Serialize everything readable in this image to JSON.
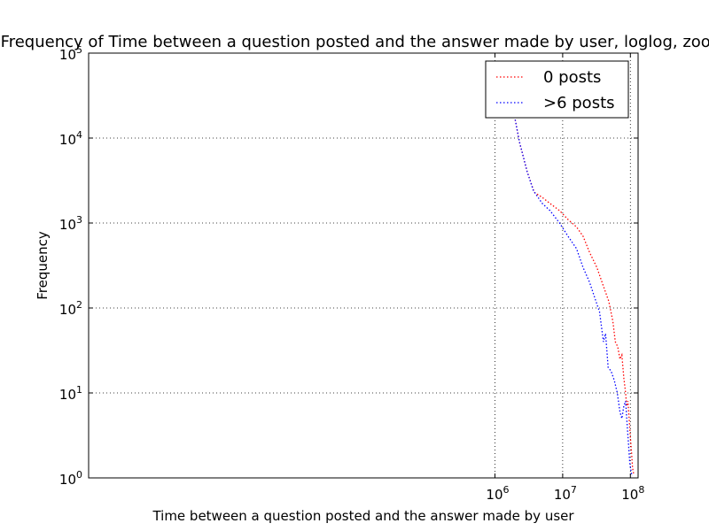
{
  "chart_data": {
    "type": "line",
    "title": "Frequency of Time between a question posted and the answer made by user, loglog, zoom",
    "xlabel": "Time between a question posted and the answer made by user",
    "ylabel": "Frequency",
    "xscale": "log",
    "yscale": "log",
    "xlim": [
      1,
      130000000
    ],
    "ylim": [
      1,
      100000
    ],
    "grid": true,
    "legend_position": "top-right",
    "x_ticks": [
      {
        "value": 1000000,
        "base": "10",
        "exp": "6"
      },
      {
        "value": 10000000,
        "base": "10",
        "exp": "7"
      },
      {
        "value": 100000000,
        "base": "10",
        "exp": "8"
      }
    ],
    "y_ticks": [
      {
        "value": 1,
        "base": "10",
        "exp": "0"
      },
      {
        "value": 10,
        "base": "10",
        "exp": "1"
      },
      {
        "value": 100,
        "base": "10",
        "exp": "2"
      },
      {
        "value": 1000,
        "base": "10",
        "exp": "3"
      },
      {
        "value": 10000,
        "base": "10",
        "exp": "4"
      },
      {
        "value": 100000,
        "base": "10",
        "exp": "5"
      }
    ],
    "series": [
      {
        "name": "0 posts",
        "color": "#ff0000",
        "points": [
          [
            1500000,
            80000
          ],
          [
            1800000,
            25000
          ],
          [
            2300000,
            9000
          ],
          [
            3000000,
            4000
          ],
          [
            3800000,
            2300
          ],
          [
            5000000,
            2000
          ],
          [
            6500000,
            1700
          ],
          [
            9000000,
            1400
          ],
          [
            12000000,
            1100
          ],
          [
            16000000,
            900
          ],
          [
            20000000,
            700
          ],
          [
            25000000,
            450
          ],
          [
            32000000,
            300
          ],
          [
            40000000,
            180
          ],
          [
            48000000,
            120
          ],
          [
            55000000,
            70
          ],
          [
            60000000,
            40
          ],
          [
            65000000,
            35
          ],
          [
            70000000,
            25
          ],
          [
            75000000,
            28
          ],
          [
            80000000,
            15
          ],
          [
            85000000,
            10
          ],
          [
            88000000,
            7
          ],
          [
            92000000,
            8
          ],
          [
            96000000,
            5
          ],
          [
            100000000,
            3
          ],
          [
            104000000,
            2
          ],
          [
            108000000,
            1.3
          ],
          [
            112000000,
            1.1
          ]
        ]
      },
      {
        "name": ">6 posts",
        "color": "#0000ff",
        "points": [
          [
            1500000,
            80000
          ],
          [
            1800000,
            25000
          ],
          [
            2300000,
            9000
          ],
          [
            3000000,
            4000
          ],
          [
            3700000,
            2400
          ],
          [
            5000000,
            1700
          ],
          [
            6500000,
            1400
          ],
          [
            9000000,
            1000
          ],
          [
            12000000,
            700
          ],
          [
            16000000,
            500
          ],
          [
            20000000,
            300
          ],
          [
            25000000,
            200
          ],
          [
            30000000,
            130
          ],
          [
            35000000,
            90
          ],
          [
            40000000,
            40
          ],
          [
            43000000,
            50
          ],
          [
            47000000,
            20
          ],
          [
            52000000,
            18
          ],
          [
            58000000,
            14
          ],
          [
            64000000,
            10
          ],
          [
            70000000,
            6
          ],
          [
            75000000,
            5
          ],
          [
            80000000,
            7
          ],
          [
            85000000,
            8
          ],
          [
            90000000,
            4
          ],
          [
            94000000,
            2.5
          ],
          [
            98000000,
            1.5
          ],
          [
            102000000,
            1.2
          ],
          [
            106000000,
            1.05
          ]
        ]
      }
    ]
  }
}
